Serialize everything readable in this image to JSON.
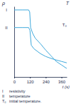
{
  "chart_data": {
    "type": "line",
    "y_label": "ρ",
    "y2_label": "T",
    "x_label": "t (s)",
    "xlim": [
      0,
      400
    ],
    "xticks": [
      0,
      120,
      240,
      360
    ],
    "ylim": [
      0,
      100
    ],
    "tick_labels": "x",
    "color": "#3fa9dc",
    "series": [
      {
        "name": "I",
        "description": "resistivity",
        "x": [
          0,
          60,
          110,
          118,
          125,
          140,
          160,
          200,
          240,
          280,
          320,
          360,
          400
        ],
        "values": [
          95,
          95,
          95,
          92,
          70,
          62,
          55,
          47,
          38,
          30,
          22,
          17,
          12
        ]
      },
      {
        "name": "II",
        "description": "temperature",
        "x": [
          0,
          60,
          110,
          120,
          130,
          150,
          200,
          240,
          300,
          360,
          400
        ],
        "values": [
          70,
          70,
          70,
          66,
          45,
          40,
          33,
          29,
          25,
          22,
          20
        ]
      }
    ],
    "reference": {
      "name": "T₀",
      "description": "initial temperature.",
      "value": 70
    }
  }
}
